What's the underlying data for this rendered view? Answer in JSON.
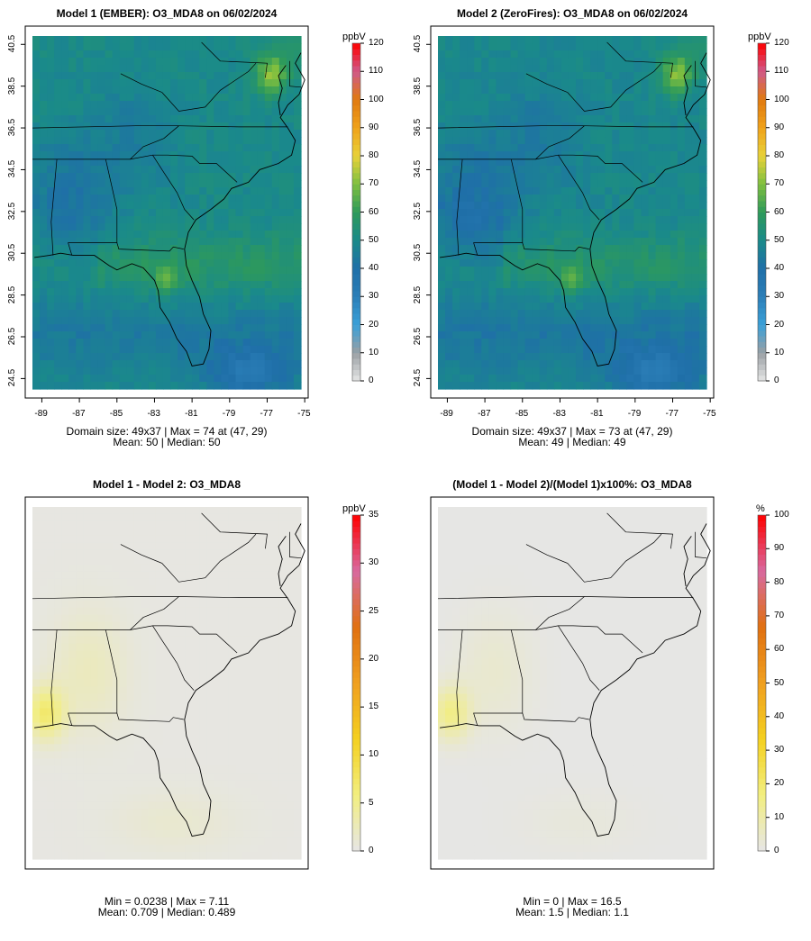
{
  "panels": [
    {
      "title": "Model 1 (EMBER): O3_MDA8 on 06/02/2024",
      "unit": "ppbV",
      "colorbar_ticks": [
        "0",
        "10",
        "20",
        "30",
        "40",
        "50",
        "60",
        "70",
        "80",
        "90",
        "100",
        "110",
        "120"
      ],
      "colorbar_max": 120,
      "field": "absolute",
      "show_axes": true,
      "caption_line1": "Domain size: 49x37 | Max = 74 at (47, 29)",
      "caption_line2": "Mean: 50 |  Median: 50"
    },
    {
      "title": "Model 2 (ZeroFires): O3_MDA8 on 06/02/2024",
      "unit": "ppbV",
      "colorbar_ticks": [
        "0",
        "10",
        "20",
        "30",
        "40",
        "50",
        "60",
        "70",
        "80",
        "90",
        "100",
        "110",
        "120"
      ],
      "colorbar_max": 120,
      "field": "absolute2",
      "show_axes": true,
      "caption_line1": "Domain size: 49x37 | Max = 73 at (47, 29)",
      "caption_line2": "Mean: 49 |  Median: 49"
    },
    {
      "title": "Model 1 - Model 2: O3_MDA8",
      "unit": "ppbV",
      "colorbar_ticks": [
        "0",
        "5",
        "10",
        "15",
        "20",
        "25",
        "30",
        "35"
      ],
      "colorbar_max": 35,
      "field": "difference",
      "show_axes": false,
      "caption_line1": "Min = 0.0238 | Max = 7.11",
      "caption_line2": "Mean: 0.709 |  Median: 0.489"
    },
    {
      "title": "(Model 1 - Model 2)/(Model 1)x100%: O3_MDA8",
      "unit": "%",
      "colorbar_ticks": [
        "0",
        "10",
        "20",
        "30",
        "40",
        "50",
        "60",
        "70",
        "80",
        "90",
        "100"
      ],
      "colorbar_max": 100,
      "field": "percent",
      "show_axes": false,
      "caption_line1": "Min = 0 | Max = 16.5",
      "caption_line2": "Mean: 1.5 |  Median: 1.1"
    }
  ],
  "lon_ticks": [
    "-89",
    "-87",
    "-85",
    "-83",
    "-81",
    "-79",
    "-77",
    "-75"
  ],
  "lat_ticks": [
    "24.5",
    "26.5",
    "28.5",
    "30.5",
    "32.5",
    "34.5",
    "36.5",
    "38.5",
    "40.5"
  ],
  "colors": {
    "scale_absolute": [
      "#e6e6e6",
      "#9aa0a4",
      "#3aa0d8",
      "#2c7fb8",
      "#1f6fa8",
      "#1a8a8a",
      "#2e9a5a",
      "#7fbf3f",
      "#e8d23a",
      "#f0a21a",
      "#e07a10",
      "#cf5a8a",
      "#ff0000"
    ],
    "scale_difference": [
      "#e6e6e6",
      "#f2ee80",
      "#f4d020",
      "#f0a020",
      "#e07010",
      "#d86aa0",
      "#ff0000"
    ]
  }
}
